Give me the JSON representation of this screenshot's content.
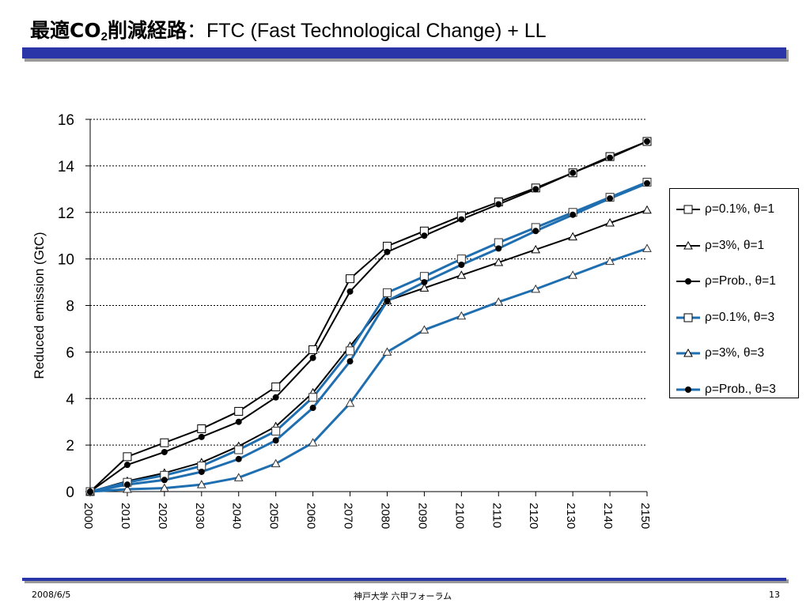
{
  "title": {
    "prefix_a": "最適CO",
    "subscript": "2",
    "prefix_b": "削減経路",
    "rest": "：FTC (Fast Technological Change) + LL"
  },
  "footer": {
    "date": "2008/6/5",
    "center": "神戸大学 六甲フォーラム",
    "page": "13"
  },
  "colors": {
    "black_series": "#000000",
    "blue_series": "#1f6fb0",
    "header_bar": "#2a36a8"
  },
  "chart_data": {
    "type": "line",
    "ylabel": "Reduced emission (GtC)",
    "xlabel": "",
    "ylim": [
      0,
      16
    ],
    "yticks": [
      "0",
      "2",
      "4",
      "6",
      "8",
      "10",
      "12",
      "14",
      "16"
    ],
    "x": [
      2000,
      2010,
      2020,
      2030,
      2040,
      2050,
      2060,
      2070,
      2080,
      2090,
      2100,
      2110,
      2120,
      2130,
      2140,
      2150
    ],
    "xticks": [
      "2000",
      "2010",
      "2020",
      "2030",
      "2040",
      "2050",
      "2060",
      "2070",
      "2080",
      "2090",
      "2100",
      "2110",
      "2120",
      "2130",
      "2140",
      "2150"
    ],
    "grid": "horizontal dashed",
    "legend_position": "right",
    "series": [
      {
        "name": "ρ=0.1%, θ=1",
        "color": "#000000",
        "marker": "square",
        "values": [
          0,
          1.5,
          2.1,
          2.7,
          3.45,
          4.5,
          6.1,
          9.15,
          10.55,
          11.2,
          11.85,
          12.45,
          13.05,
          13.7,
          14.4,
          15.05
        ]
      },
      {
        "name": "ρ=3%, θ=1",
        "color": "#000000",
        "marker": "triangle",
        "values": [
          0,
          0.45,
          0.8,
          1.25,
          1.95,
          2.8,
          4.25,
          6.25,
          8.2,
          8.75,
          9.3,
          9.85,
          10.4,
          10.95,
          11.55,
          12.1
        ]
      },
      {
        "name": "ρ=Prob., θ=1",
        "color": "#000000",
        "marker": "dot",
        "values": [
          0,
          1.15,
          1.7,
          2.35,
          3.0,
          4.05,
          5.75,
          8.6,
          10.3,
          11.0,
          11.7,
          12.35,
          13.0,
          13.7,
          14.35,
          15.05
        ]
      },
      {
        "name": "ρ=0.1%, θ=3",
        "color": "#1f6fb0",
        "marker": "square",
        "values": [
          0,
          0.4,
          0.7,
          1.1,
          1.8,
          2.6,
          4.05,
          6.05,
          8.55,
          9.25,
          10.0,
          10.7,
          11.35,
          12.0,
          12.65,
          13.3
        ]
      },
      {
        "name": "ρ=3%, θ=3",
        "color": "#1f6fb0",
        "marker": "triangle",
        "values": [
          0,
          0.1,
          0.15,
          0.3,
          0.6,
          1.2,
          2.1,
          3.8,
          6.0,
          6.95,
          7.55,
          8.15,
          8.7,
          9.3,
          9.9,
          10.45
        ]
      },
      {
        "name": "ρ=Prob., θ=3",
        "color": "#1f6fb0",
        "marker": "dot",
        "values": [
          0,
          0.3,
          0.5,
          0.85,
          1.4,
          2.2,
          3.6,
          5.6,
          8.2,
          9.0,
          9.75,
          10.45,
          11.2,
          11.9,
          12.6,
          13.25
        ]
      }
    ]
  }
}
